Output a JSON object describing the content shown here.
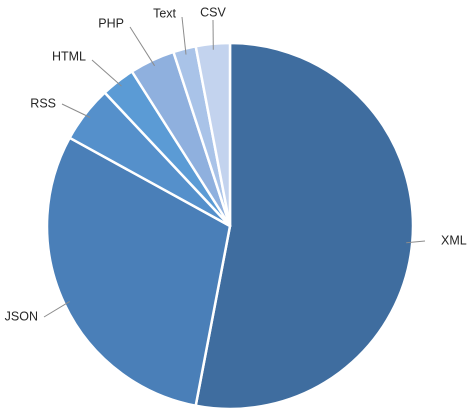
{
  "chart_data": {
    "type": "pie",
    "title": "",
    "start_angle_deg": 0,
    "direction": "clockwise",
    "slices": [
      {
        "label": "XML",
        "value": 53.0,
        "color": "#3f6d9f"
      },
      {
        "label": "JSON",
        "value": 30.0,
        "color": "#4a7fb8"
      },
      {
        "label": "RSS",
        "value": 5.0,
        "color": "#5590cb"
      },
      {
        "label": "HTML",
        "value": 3.0,
        "color": "#5b9bd5"
      },
      {
        "label": "PHP",
        "value": 4.0,
        "color": "#8fb0de"
      },
      {
        "label": "Text",
        "value": 2.0,
        "color": "#a9c3e8"
      },
      {
        "label": "CSV",
        "value": 3.0,
        "color": "#c3d3ee"
      }
    ]
  }
}
